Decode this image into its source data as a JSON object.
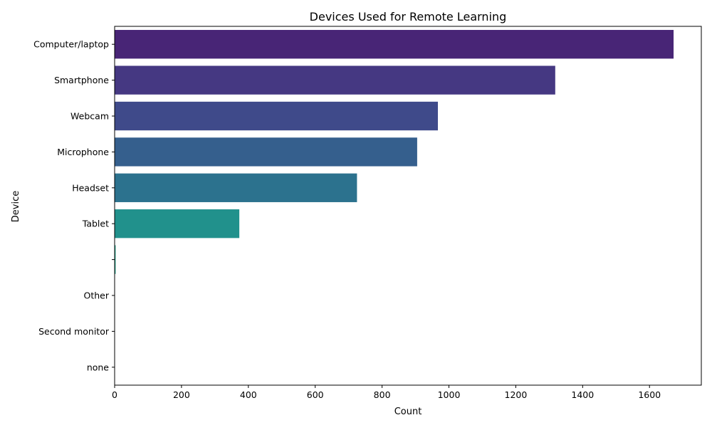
{
  "chart_data": {
    "type": "bar",
    "orientation": "horizontal",
    "title": "Devices Used for Remote Learning",
    "xlabel": "Count",
    "ylabel": "Device",
    "categories": [
      "Computer/laptop",
      "Smartphone",
      "Webcam",
      "Microphone",
      "Headset",
      "Tablet",
      "",
      "Other",
      "Second monitor",
      "none"
    ],
    "values": [
      1672,
      1318,
      967,
      905,
      725,
      373,
      3,
      1,
      1,
      1
    ],
    "colors": [
      "#482576",
      "#453882",
      "#3f4a8a",
      "#355f8d",
      "#2c728e",
      "#21918c",
      "#1fa187",
      "#3bbb75",
      "#5ec962",
      "#bddf26"
    ],
    "xlim": [
      0,
      1755
    ],
    "xticks": [
      0,
      200,
      400,
      600,
      800,
      1000,
      1200,
      1400,
      1600
    ],
    "grid": false,
    "legend": "none"
  }
}
